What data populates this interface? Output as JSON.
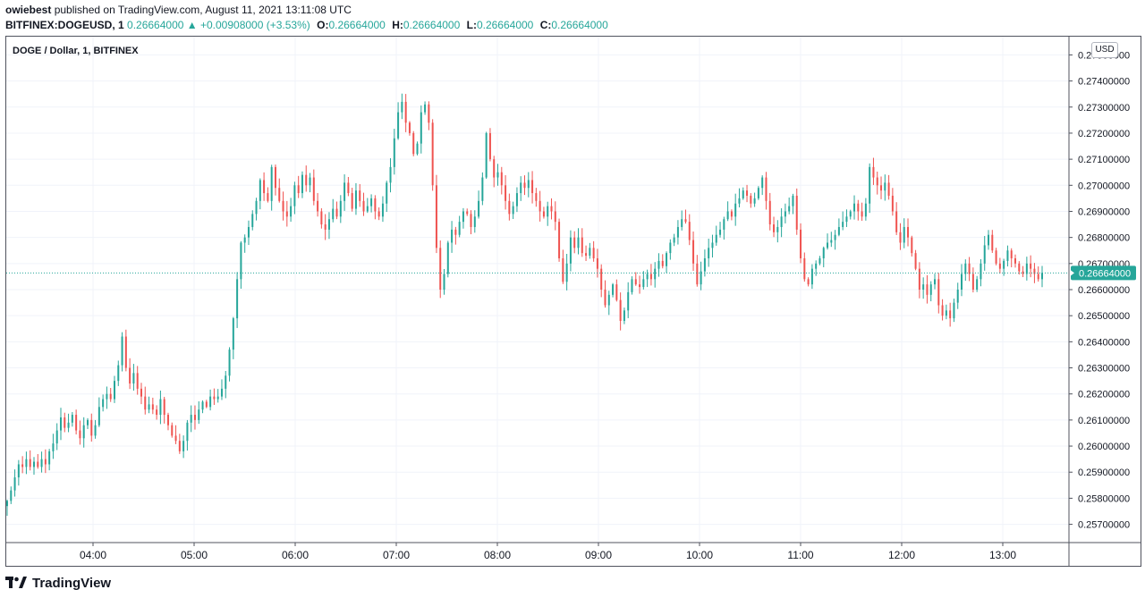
{
  "header": {
    "author": "owiebest",
    "published_text": "published on TradingView.com, August 11, 2021 13:11:08 UTC",
    "symbol": "BITFINEX:DOGEUSD, 1",
    "last": "0.26664000",
    "change": "▲ +0.00908000 (+3.53%)",
    "o_label": "O:",
    "o_value": "0.26664000",
    "h_label": "H:",
    "h_value": "0.26664000",
    "l_label": "L:",
    "l_value": "0.26664000",
    "c_label": "C:",
    "c_value": "0.26664000"
  },
  "panel": {
    "title": "DOGE / Dollar, 1, BITFINEX",
    "currency_badge": "USD"
  },
  "footer": {
    "brand": "TradingView"
  },
  "colors": {
    "up": "#26a69a",
    "down": "#ef5350",
    "price_line": "#26a69a",
    "grid": "#f0f3fa",
    "axis_text": "#131722"
  },
  "chart_data": {
    "type": "candlestick",
    "title": "DOGE / Dollar, 1, BITFINEX",
    "interval": "1 minute",
    "x_ticks": [
      "04:00",
      "05:00",
      "06:00",
      "07:00",
      "08:00",
      "09:00",
      "10:00",
      "11:00",
      "12:00",
      "13:00"
    ],
    "y_ticks": [
      "0.27500000",
      "0.27400000",
      "0.27300000",
      "0.27200000",
      "0.27100000",
      "0.27000000",
      "0.26900000",
      "0.26800000",
      "0.26700000",
      "0.26600000",
      "0.26500000",
      "0.26400000",
      "0.26300000",
      "0.26200000",
      "0.26100000",
      "0.26000000",
      "0.25900000",
      "0.25800000",
      "0.25700000"
    ],
    "ylim": [
      0.2563,
      0.2757
    ],
    "current_price": 0.26664,
    "current_price_label": "0.26664000",
    "grid": true,
    "series": [
      {
        "values_start_time": "03:05",
        "close": [
          0.2579,
          0.2583,
          0.2588,
          0.2593,
          0.2592,
          0.2595,
          0.2592,
          0.2594,
          0.2592,
          0.2595,
          0.2593,
          0.2598,
          0.2601,
          0.2606,
          0.2611,
          0.2607,
          0.2609,
          0.2612,
          0.2606,
          0.2603,
          0.2608,
          0.261,
          0.2604,
          0.2608,
          0.2615,
          0.2618,
          0.262,
          0.2618,
          0.2625,
          0.2631,
          0.2642,
          0.263,
          0.2624,
          0.2628,
          0.2622,
          0.2619,
          0.2614,
          0.2616,
          0.2614,
          0.2612,
          0.2618,
          0.2612,
          0.2608,
          0.2604,
          0.2602,
          0.2598,
          0.2602,
          0.2609,
          0.2612,
          0.261,
          0.2614,
          0.2617,
          0.2615,
          0.2619,
          0.2618,
          0.2619,
          0.2622,
          0.2627,
          0.2637,
          0.2649,
          0.2664,
          0.2678,
          0.268,
          0.2684,
          0.2689,
          0.2694,
          0.2702,
          0.2697,
          0.2694,
          0.2707,
          0.2699,
          0.2694,
          0.269,
          0.2688,
          0.2692,
          0.27,
          0.2697,
          0.2704,
          0.27,
          0.2703,
          0.2694,
          0.269,
          0.2685,
          0.2683,
          0.2687,
          0.2691,
          0.2688,
          0.2694,
          0.2701,
          0.2697,
          0.2691,
          0.2698,
          0.2694,
          0.269,
          0.2692,
          0.2695,
          0.269,
          0.2688,
          0.2693,
          0.2701,
          0.2707,
          0.2718,
          0.2728,
          0.2732,
          0.2724,
          0.272,
          0.2712,
          0.2716,
          0.2728,
          0.2731,
          0.2724,
          0.27,
          0.2676,
          0.266,
          0.2666,
          0.2678,
          0.2683,
          0.2681,
          0.2686,
          0.269,
          0.2689,
          0.2684,
          0.2688,
          0.2694,
          0.2703,
          0.272,
          0.271,
          0.2703,
          0.2705,
          0.27,
          0.2694,
          0.2689,
          0.2692,
          0.2697,
          0.2701,
          0.2699,
          0.2702,
          0.2697,
          0.2694,
          0.269,
          0.2688,
          0.2692,
          0.269,
          0.2686,
          0.2672,
          0.2663,
          0.267,
          0.268,
          0.2676,
          0.268,
          0.2674,
          0.2673,
          0.2676,
          0.2672,
          0.2668,
          0.266,
          0.2654,
          0.2658,
          0.2662,
          0.2656,
          0.2648,
          0.2652,
          0.2659,
          0.2664,
          0.2662,
          0.2661,
          0.2664,
          0.2666,
          0.2664,
          0.2668,
          0.2671,
          0.2669,
          0.2674,
          0.2678,
          0.268,
          0.2684,
          0.2687,
          0.2686,
          0.2679,
          0.267,
          0.2662,
          0.2667,
          0.2672,
          0.2676,
          0.2678,
          0.2681,
          0.2683,
          0.2687,
          0.269,
          0.2688,
          0.2693,
          0.2695,
          0.2698,
          0.2696,
          0.2693,
          0.2695,
          0.2699,
          0.2703,
          0.2694,
          0.2685,
          0.2682,
          0.2684,
          0.2688,
          0.269,
          0.2692,
          0.2696,
          0.2683,
          0.2672,
          0.2664,
          0.2662,
          0.2668,
          0.267,
          0.2672,
          0.2676,
          0.2678,
          0.2679,
          0.2681,
          0.2684,
          0.2686,
          0.2688,
          0.269,
          0.2693,
          0.269,
          0.2688,
          0.2693,
          0.2707,
          0.2703,
          0.27,
          0.2698,
          0.2701,
          0.2696,
          0.269,
          0.2682,
          0.2678,
          0.2684,
          0.268,
          0.2674,
          0.2668,
          0.266,
          0.2662,
          0.2658,
          0.2662,
          0.2664,
          0.2654,
          0.265,
          0.2652,
          0.2649,
          0.2655,
          0.266,
          0.2666,
          0.267,
          0.2666,
          0.266,
          0.2664,
          0.267,
          0.2677,
          0.2681,
          0.2675,
          0.267,
          0.2668,
          0.2671,
          0.2675,
          0.2672,
          0.267,
          0.2667,
          0.2666,
          0.267,
          0.2668,
          0.2666,
          0.2664,
          0.26664
        ]
      }
    ]
  }
}
